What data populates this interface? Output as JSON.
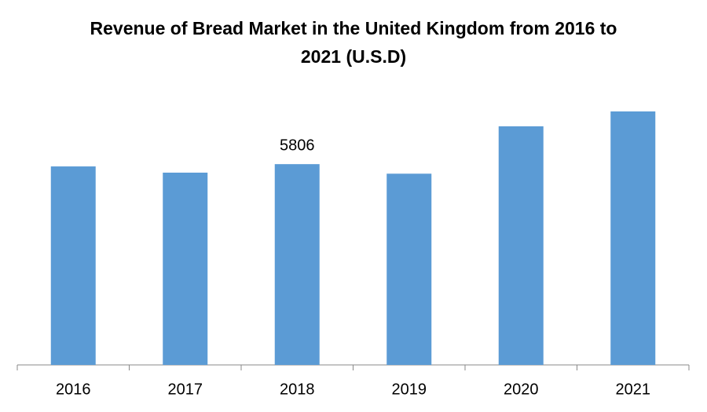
{
  "chart_data": {
    "type": "bar",
    "title": "Revenue of Bread Market in the United Kingdom from 2016 to 2021 (U.S.D)",
    "categories": [
      "2016",
      "2017",
      "2018",
      "2019",
      "2020",
      "2021"
    ],
    "values": [
      5740,
      5560,
      5806,
      5530,
      6900,
      7330
    ],
    "value_labels": [
      null,
      null,
      "5806",
      null,
      null,
      null
    ],
    "color": "#5b9bd5"
  }
}
